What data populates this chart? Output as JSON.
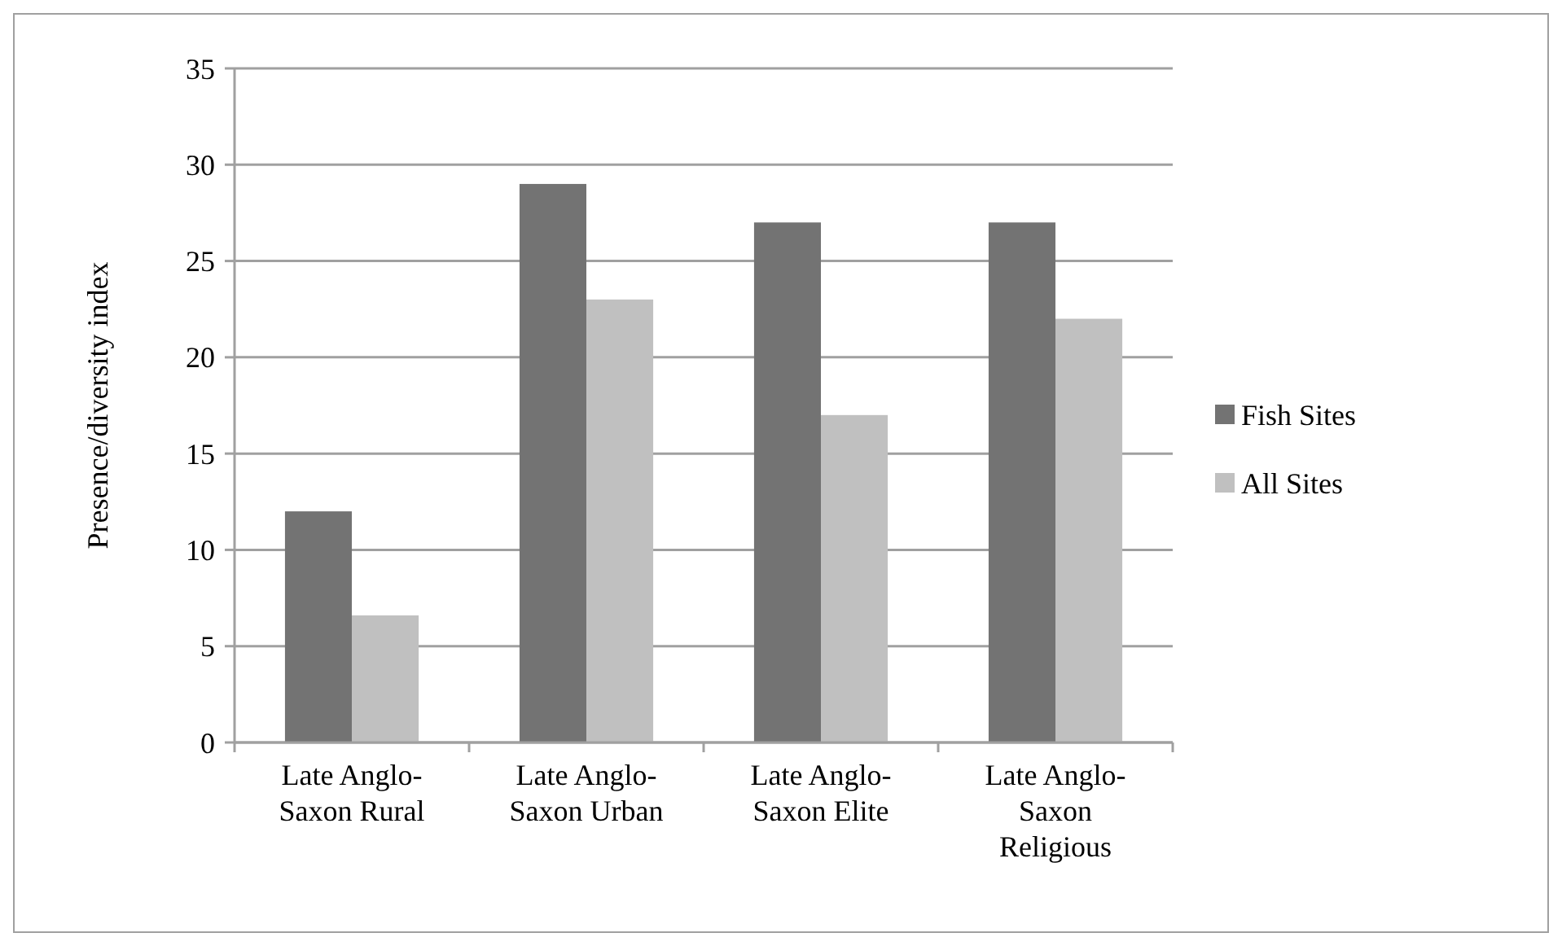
{
  "chart_data": {
    "type": "bar",
    "ylabel": "Presence/diversity index",
    "categories": [
      "Late Anglo-Saxon Rural",
      "Late Anglo-Saxon Urban",
      "Late Anglo-Saxon Elite",
      "Late Anglo-Saxon Religious"
    ],
    "series": [
      {
        "name": "Fish Sites",
        "color": "#737373",
        "values": [
          12,
          29,
          27,
          27
        ]
      },
      {
        "name": "All Sites",
        "color": "#c0c0c0",
        "values": [
          6.6,
          23,
          17,
          22
        ]
      }
    ],
    "ylim": [
      0,
      35
    ],
    "yticks": [
      0,
      5,
      10,
      15,
      20,
      25,
      30,
      35
    ],
    "grid": "y",
    "legend": "right"
  }
}
